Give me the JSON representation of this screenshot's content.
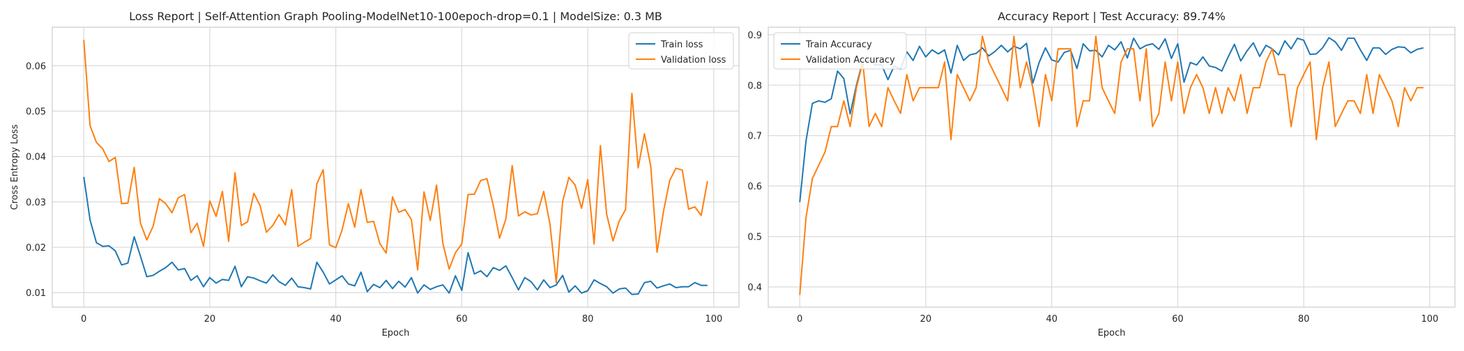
{
  "chart_data": [
    {
      "type": "line",
      "title": "Loss Report | Self-Attention Graph Pooling-ModelNet10-100epoch-drop=0.1 | ModelSize: 0.3 MB",
      "xlabel": "Epoch",
      "ylabel": "Cross Entropy Loss",
      "xlim": [
        -5,
        104
      ],
      "ylim": [
        0.0068,
        0.0685
      ],
      "xticks": [
        0,
        20,
        40,
        60,
        80,
        100
      ],
      "xtick_labels": [
        "0",
        "20",
        "40",
        "60",
        "80",
        "100"
      ],
      "yticks": [
        0.01,
        0.02,
        0.03,
        0.04,
        0.05,
        0.06
      ],
      "ytick_labels": [
        "0.01",
        "0.02",
        "0.03",
        "0.04",
        "0.05",
        "0.06"
      ],
      "grid": true,
      "legend_position": "top-right",
      "x": [
        0,
        1,
        2,
        3,
        4,
        5,
        6,
        7,
        8,
        9,
        10,
        11,
        12,
        13,
        14,
        15,
        16,
        17,
        18,
        19,
        20,
        21,
        22,
        23,
        24,
        25,
        26,
        27,
        28,
        29,
        30,
        31,
        32,
        33,
        34,
        35,
        36,
        37,
        38,
        39,
        40,
        41,
        42,
        43,
        44,
        45,
        46,
        47,
        48,
        49,
        50,
        51,
        52,
        53,
        54,
        55,
        56,
        57,
        58,
        59,
        60,
        61,
        62,
        63,
        64,
        65,
        66,
        67,
        68,
        69,
        70,
        71,
        72,
        73,
        74,
        75,
        76,
        77,
        78,
        79,
        80,
        81,
        82,
        83,
        84,
        85,
        86,
        87,
        88,
        89,
        90,
        91,
        92,
        93,
        94,
        95,
        96,
        97,
        98,
        99
      ],
      "series": [
        {
          "name": "Train loss",
          "color": "#1f77b4",
          "values": [
            0.0355,
            0.026,
            0.021,
            0.0202,
            0.0203,
            0.0192,
            0.0161,
            0.0165,
            0.0223,
            0.018,
            0.0135,
            0.0138,
            0.0147,
            0.0155,
            0.0167,
            0.015,
            0.0153,
            0.0127,
            0.0137,
            0.0113,
            0.0133,
            0.0121,
            0.0129,
            0.0127,
            0.0158,
            0.0113,
            0.0135,
            0.0132,
            0.0126,
            0.0121,
            0.0139,
            0.0124,
            0.0116,
            0.0132,
            0.0113,
            0.0111,
            0.0108,
            0.0167,
            0.0145,
            0.0119,
            0.0128,
            0.0137,
            0.0119,
            0.0115,
            0.0145,
            0.0102,
            0.0118,
            0.0111,
            0.0127,
            0.0109,
            0.0125,
            0.0112,
            0.0133,
            0.0099,
            0.0117,
            0.0107,
            0.0113,
            0.0117,
            0.0099,
            0.0137,
            0.0105,
            0.0188,
            0.0141,
            0.0148,
            0.0135,
            0.0155,
            0.0149,
            0.0159,
            0.0133,
            0.0106,
            0.0133,
            0.0124,
            0.0106,
            0.0128,
            0.0111,
            0.0117,
            0.0138,
            0.0101,
            0.0115,
            0.0099,
            0.0104,
            0.0128,
            0.012,
            0.0113,
            0.0099,
            0.0108,
            0.011,
            0.0096,
            0.0097,
            0.0122,
            0.0125,
            0.011,
            0.0115,
            0.0119,
            0.0111,
            0.0113,
            0.0113,
            0.0122,
            0.0116,
            0.0116
          ]
        },
        {
          "name": "Validation loss",
          "color": "#ff7f0e",
          "values": [
            0.0657,
            0.0468,
            0.0431,
            0.0417,
            0.0389,
            0.0398,
            0.0296,
            0.0297,
            0.0376,
            0.0253,
            0.0216,
            0.0246,
            0.0307,
            0.0296,
            0.0276,
            0.0309,
            0.0316,
            0.0232,
            0.0253,
            0.0202,
            0.0302,
            0.0268,
            0.0323,
            0.0213,
            0.0364,
            0.0248,
            0.0256,
            0.0319,
            0.0291,
            0.0233,
            0.0248,
            0.0272,
            0.0249,
            0.0327,
            0.0202,
            0.0211,
            0.0219,
            0.034,
            0.0371,
            0.0205,
            0.0199,
            0.0238,
            0.0296,
            0.0244,
            0.0327,
            0.0255,
            0.0257,
            0.0208,
            0.0187,
            0.0311,
            0.0277,
            0.0283,
            0.0261,
            0.015,
            0.0322,
            0.0259,
            0.0337,
            0.0208,
            0.0152,
            0.0188,
            0.0207,
            0.0316,
            0.0317,
            0.0347,
            0.0351,
            0.0292,
            0.022,
            0.0262,
            0.038,
            0.0269,
            0.0278,
            0.0271,
            0.0274,
            0.0323,
            0.0251,
            0.0122,
            0.03,
            0.0354,
            0.0337,
            0.0286,
            0.0349,
            0.0207,
            0.0424,
            0.0273,
            0.0214,
            0.0258,
            0.0283,
            0.0539,
            0.0375,
            0.045,
            0.0378,
            0.0189,
            0.0278,
            0.0347,
            0.0374,
            0.037,
            0.0284,
            0.0289,
            0.027,
            0.0346
          ]
        }
      ]
    },
    {
      "type": "line",
      "title": "Accuracy Report | Test Accuracy: 89.74%",
      "xlabel": "Epoch",
      "ylabel": "",
      "xlim": [
        -5,
        104
      ],
      "ylim": [
        0.36,
        0.915
      ],
      "xticks": [
        0,
        20,
        40,
        60,
        80,
        100
      ],
      "xtick_labels": [
        "0",
        "20",
        "40",
        "60",
        "80",
        "100"
      ],
      "yticks": [
        0.4,
        0.5,
        0.6,
        0.7,
        0.8,
        0.9
      ],
      "ytick_labels": [
        "0.4",
        "0.5",
        "0.6",
        "0.7",
        "0.8",
        "0.9"
      ],
      "grid": true,
      "legend_position": "top-left",
      "x": [
        0,
        1,
        2,
        3,
        4,
        5,
        6,
        7,
        8,
        9,
        10,
        11,
        12,
        13,
        14,
        15,
        16,
        17,
        18,
        19,
        20,
        21,
        22,
        23,
        24,
        25,
        26,
        27,
        28,
        29,
        30,
        31,
        32,
        33,
        34,
        35,
        36,
        37,
        38,
        39,
        40,
        41,
        42,
        43,
        44,
        45,
        46,
        47,
        48,
        49,
        50,
        51,
        52,
        53,
        54,
        55,
        56,
        57,
        58,
        59,
        60,
        61,
        62,
        63,
        64,
        65,
        66,
        67,
        68,
        69,
        70,
        71,
        72,
        73,
        74,
        75,
        76,
        77,
        78,
        79,
        80,
        81,
        82,
        83,
        84,
        85,
        86,
        87,
        88,
        89,
        90,
        91,
        92,
        93,
        94,
        95,
        96,
        97,
        98,
        99
      ],
      "series": [
        {
          "name": "Train Accuracy",
          "color": "#1f77b4",
          "values": [
            0.568,
            0.69,
            0.764,
            0.769,
            0.766,
            0.773,
            0.828,
            0.813,
            0.743,
            0.8,
            0.848,
            0.849,
            0.84,
            0.84,
            0.811,
            0.838,
            0.832,
            0.866,
            0.849,
            0.877,
            0.856,
            0.87,
            0.862,
            0.87,
            0.824,
            0.879,
            0.849,
            0.86,
            0.863,
            0.874,
            0.858,
            0.867,
            0.879,
            0.866,
            0.877,
            0.872,
            0.883,
            0.804,
            0.845,
            0.874,
            0.85,
            0.846,
            0.865,
            0.869,
            0.833,
            0.882,
            0.868,
            0.869,
            0.856,
            0.879,
            0.87,
            0.886,
            0.854,
            0.893,
            0.872,
            0.879,
            0.882,
            0.871,
            0.892,
            0.853,
            0.882,
            0.806,
            0.845,
            0.84,
            0.856,
            0.838,
            0.835,
            0.828,
            0.856,
            0.881,
            0.848,
            0.868,
            0.884,
            0.857,
            0.879,
            0.872,
            0.86,
            0.888,
            0.872,
            0.893,
            0.889,
            0.861,
            0.862,
            0.874,
            0.894,
            0.886,
            0.869,
            0.893,
            0.893,
            0.87,
            0.849,
            0.874,
            0.874,
            0.861,
            0.871,
            0.876,
            0.875,
            0.864,
            0.871,
            0.874
          ]
        },
        {
          "name": "Validation Accuracy",
          "color": "#ff7f0e",
          "values": [
            0.384,
            0.538,
            0.615,
            0.641,
            0.667,
            0.718,
            0.718,
            0.769,
            0.718,
            0.795,
            0.846,
            0.718,
            0.744,
            0.718,
            0.795,
            0.769,
            0.744,
            0.821,
            0.769,
            0.795,
            0.795,
            0.795,
            0.795,
            0.846,
            0.692,
            0.821,
            0.795,
            0.769,
            0.795,
            0.897,
            0.846,
            0.821,
            0.795,
            0.769,
            0.897,
            0.795,
            0.846,
            0.795,
            0.718,
            0.821,
            0.769,
            0.872,
            0.872,
            0.872,
            0.718,
            0.769,
            0.769,
            0.897,
            0.795,
            0.769,
            0.744,
            0.846,
            0.872,
            0.872,
            0.769,
            0.872,
            0.718,
            0.744,
            0.846,
            0.769,
            0.846,
            0.744,
            0.795,
            0.821,
            0.795,
            0.744,
            0.795,
            0.744,
            0.795,
            0.769,
            0.821,
            0.744,
            0.795,
            0.795,
            0.846,
            0.872,
            0.821,
            0.821,
            0.718,
            0.795,
            0.821,
            0.846,
            0.692,
            0.795,
            0.846,
            0.718,
            0.744,
            0.769,
            0.769,
            0.744,
            0.821,
            0.744,
            0.821,
            0.795,
            0.769,
            0.718,
            0.795,
            0.769,
            0.795,
            0.795
          ]
        }
      ]
    }
  ]
}
